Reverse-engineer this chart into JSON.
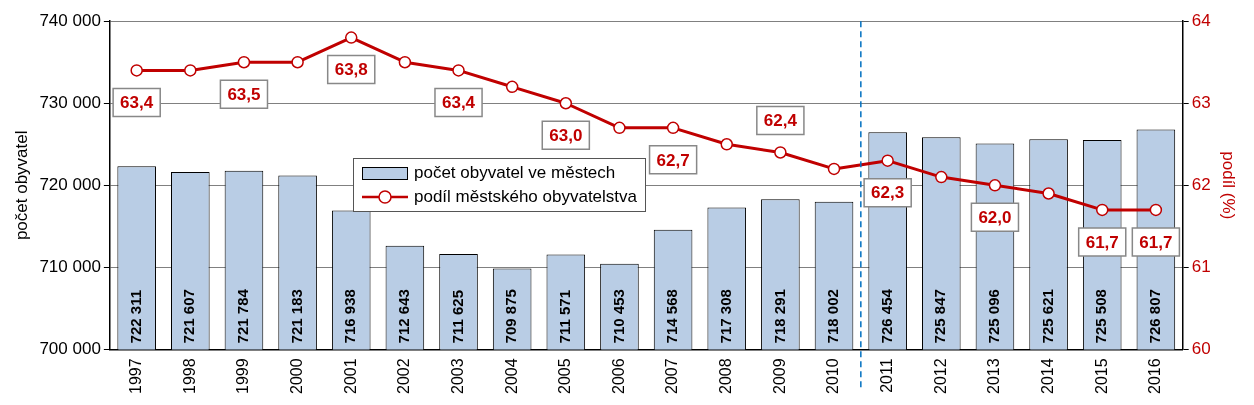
{
  "chart_data": {
    "type": "bar",
    "x": [
      1997,
      1998,
      1999,
      2000,
      2001,
      2002,
      2003,
      2004,
      2005,
      2006,
      2007,
      2008,
      2009,
      2010,
      2011,
      2012,
      2013,
      2014,
      2015,
      2016
    ],
    "xlim": [
      1996.5,
      2016.5
    ],
    "xticks": [
      1997,
      1998,
      1999,
      2000,
      2001,
      2002,
      2003,
      2004,
      2005,
      2006,
      2007,
      2008,
      2009,
      2010,
      2011,
      2012,
      2013,
      2014,
      2015,
      2016
    ],
    "ylabel": "počet obyvatel",
    "y2label": "podíl (%)",
    "ylim": [
      700000,
      740000
    ],
    "yticks": [
      {
        "value": 700000,
        "label": "700 000"
      },
      {
        "value": 710000,
        "label": "710 000"
      },
      {
        "value": 720000,
        "label": "720 000"
      },
      {
        "value": 730000,
        "label": "730 000"
      },
      {
        "value": 740000,
        "label": "740 000"
      }
    ],
    "y2lim": [
      60,
      64
    ],
    "y2ticks": [
      60,
      61,
      62,
      63,
      64
    ],
    "grid": "y",
    "legend": "top",
    "ref_lines": [
      {
        "axis": "x",
        "value": 2010.5,
        "color": "#0070c0",
        "line_style": "dashed"
      }
    ],
    "series": [
      {
        "name": "počet obyvatel ve městech",
        "color": "#b9cde5",
        "values": [
          722311,
          721607,
          721784,
          721183,
          716938,
          712643,
          711625,
          709875,
          711571,
          710453,
          714568,
          717308,
          718291,
          718002,
          726454,
          725847,
          725096,
          725621,
          725508,
          726807
        ],
        "value_labels": [
          "722 311",
          "721 607",
          "721 784",
          "721 183",
          "716 938",
          "712 643",
          "711 625",
          "709 875",
          "711 571",
          "710 453",
          "714 568",
          "717 308",
          "718 291",
          "718 002",
          "726 454",
          "725 847",
          "725 096",
          "725 621",
          "725 508",
          "726 807"
        ]
      },
      {
        "name": "podíl městského obyvatelstva",
        "type": "line",
        "axis": "y2",
        "color": "#c00000",
        "marker": "circle",
        "values": [
          63.4,
          63.4,
          63.5,
          63.5,
          63.8,
          63.5,
          63.4,
          63.2,
          63.0,
          62.7,
          62.7,
          62.5,
          62.4,
          62.2,
          62.3,
          62.1,
          62.0,
          61.9,
          61.7,
          61.7
        ],
        "value_labels": [
          "63,4",
          null,
          "63,5",
          null,
          "63,8",
          null,
          "63,4",
          null,
          "63,0",
          null,
          "62,7",
          null,
          "62,4",
          null,
          "62,3",
          null,
          "62,0",
          null,
          "61,7",
          "61,7"
        ]
      }
    ]
  }
}
